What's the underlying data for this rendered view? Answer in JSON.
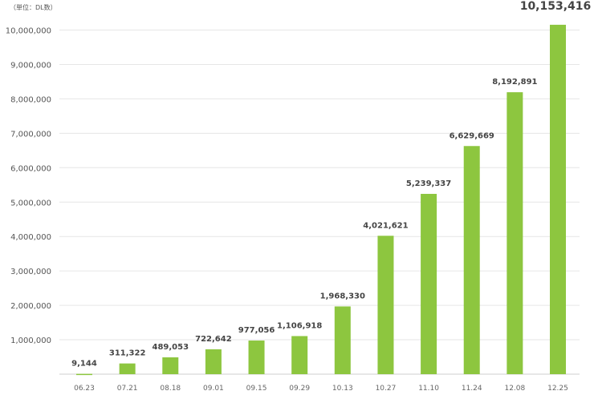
{
  "unit_label": "（単位：DL数）",
  "chart_data": {
    "type": "bar",
    "title": "",
    "xlabel": "",
    "ylabel": "",
    "ylim": [
      0,
      10000000
    ],
    "yticks": [
      1000000,
      2000000,
      3000000,
      4000000,
      5000000,
      6000000,
      7000000,
      8000000,
      9000000,
      10000000
    ],
    "ytick_labels": [
      "1,000,000",
      "2,000,000",
      "3,000,000",
      "4,000,000",
      "5,000,000",
      "6,000,000",
      "7,000,000",
      "8,000,000",
      "9,000,000",
      "10,000,000"
    ],
    "grid": true,
    "categories": [
      "06.23",
      "07.21",
      "08.18",
      "09.01",
      "09.15",
      "09.29",
      "10.13",
      "10.27",
      "11.10",
      "11.24",
      "12.08",
      "12.25"
    ],
    "values": [
      9144,
      311322,
      489053,
      722642,
      977056,
      1106918,
      1968330,
      4021621,
      5239337,
      6629669,
      8192891,
      10153416
    ],
    "value_labels": [
      "9,144",
      "311,322",
      "489,053",
      "722,642",
      "977,056",
      "1,106,918",
      "1,968,330",
      "4,021,621",
      "5,239,337",
      "6,629,669",
      "8,192,891",
      "10,153,416"
    ],
    "bar_color": "#8dc63f"
  }
}
